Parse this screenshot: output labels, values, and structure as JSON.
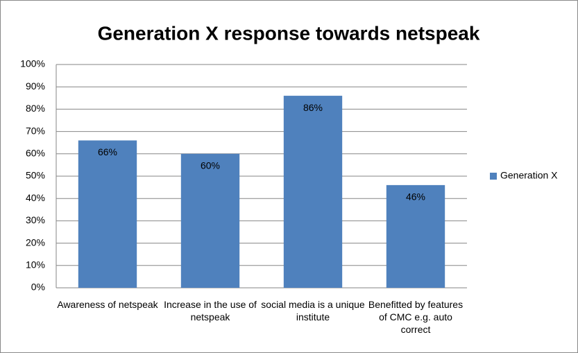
{
  "chart_data": {
    "type": "bar",
    "title": "Generation X response towards netspeak",
    "categories": [
      "Awareness of netspeak",
      "Increase in the use of netspeak",
      "social media is a unique institute",
      "Benefitted by features of CMC e.g. auto correct"
    ],
    "series": [
      {
        "name": "Generation X",
        "color": "#4f81bd",
        "values": [
          66,
          60,
          86,
          46
        ],
        "value_labels": [
          "66%",
          "60%",
          "86%",
          "46%"
        ]
      }
    ],
    "ylim": [
      0,
      100
    ],
    "yticks": [
      {
        "value": 0,
        "label": "0%"
      },
      {
        "value": 10,
        "label": "10%"
      },
      {
        "value": 20,
        "label": "20%"
      },
      {
        "value": 30,
        "label": "30%"
      },
      {
        "value": 40,
        "label": "40%"
      },
      {
        "value": 50,
        "label": "50%"
      },
      {
        "value": 60,
        "label": "60%"
      },
      {
        "value": 70,
        "label": "70%"
      },
      {
        "value": 80,
        "label": "80%"
      },
      {
        "value": 90,
        "label": "90%"
      },
      {
        "value": 100,
        "label": "100%"
      }
    ],
    "grid": true,
    "legend": "right"
  }
}
